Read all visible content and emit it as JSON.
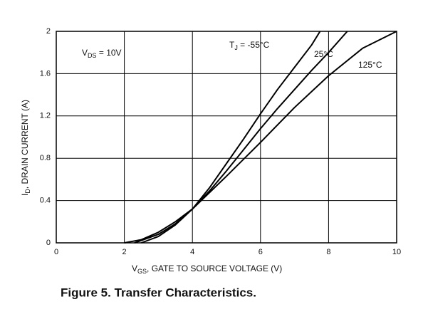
{
  "chart_data": {
    "type": "line",
    "title": "Figure 5. Transfer Characteristics.",
    "x_label": [
      "V",
      "GS",
      ", GATE TO SOURCE VOLTAGE (V)"
    ],
    "y_label": [
      "I",
      "D",
      ", DRAIN CURRENT (A)"
    ],
    "annotations": {
      "vds": [
        "V",
        "DS",
        " = 10V"
      ],
      "tj": [
        "T",
        "J",
        " = "
      ]
    },
    "xlim": [
      0,
      10
    ],
    "xticks": [
      0,
      2,
      4,
      6,
      8,
      10
    ],
    "ylim": [
      0,
      2
    ],
    "yticks": [
      0,
      0.4,
      0.8,
      1.2,
      1.6,
      2
    ],
    "grid": true,
    "series": [
      {
        "name": "-55°C",
        "color": "#000000",
        "x": [
          2.5,
          3,
          3.5,
          4,
          4.5,
          5,
          5.5,
          6,
          6.5,
          7,
          7.5,
          7.75
        ],
        "values": [
          0,
          0.06,
          0.17,
          0.32,
          0.52,
          0.75,
          0.98,
          1.22,
          1.45,
          1.66,
          1.87,
          2
        ]
      },
      {
        "name": "25°C",
        "color": "#000000",
        "x": [
          2.3,
          3,
          3.5,
          4,
          4.5,
          5,
          5.5,
          6,
          6.5,
          7,
          7.5,
          8,
          8.55
        ],
        "values": [
          0,
          0.08,
          0.18,
          0.32,
          0.49,
          0.68,
          0.88,
          1.08,
          1.27,
          1.45,
          1.63,
          1.8,
          2
        ]
      },
      {
        "name": "125°C",
        "color": "#000000",
        "x": [
          2,
          2.5,
          3,
          3.5,
          4,
          5,
          6,
          7,
          8,
          9,
          10
        ],
        "values": [
          0,
          0.03,
          0.1,
          0.2,
          0.32,
          0.63,
          0.95,
          1.28,
          1.58,
          1.84,
          2
        ]
      }
    ]
  }
}
